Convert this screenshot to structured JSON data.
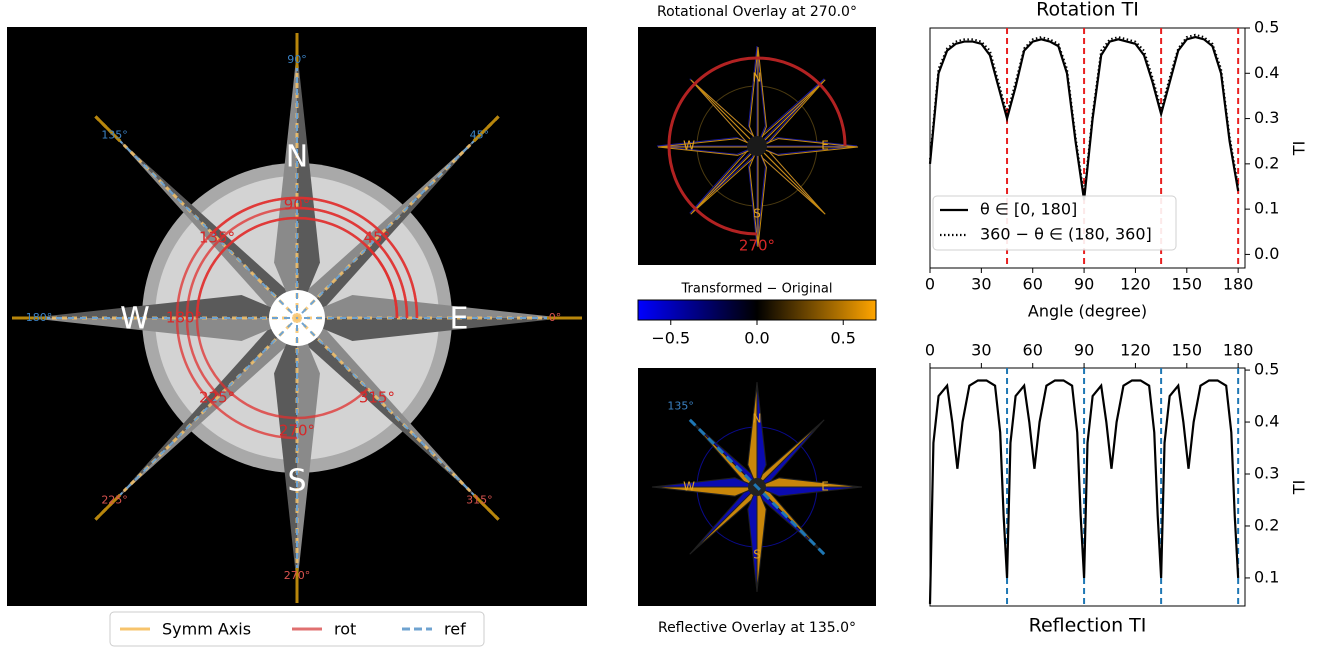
{
  "chart_data": [
    {
      "type": "compass",
      "cardinals": [
        "N",
        "E",
        "S",
        "W"
      ],
      "axis_labels": [
        {
          "value": 0,
          "label": "0°"
        },
        {
          "value": 45,
          "label": "45°"
        },
        {
          "value": 90,
          "label": "90°"
        },
        {
          "value": 135,
          "label": "135°"
        },
        {
          "value": 180,
          "label": "180°"
        },
        {
          "value": 225,
          "label": "225°"
        },
        {
          "value": 270,
          "label": "270°"
        },
        {
          "value": 315,
          "label": "315°"
        }
      ],
      "rotation_labels": [
        {
          "value": 45,
          "label": "45°"
        },
        {
          "value": 90,
          "label": "90°"
        },
        {
          "value": 135,
          "label": "135°"
        },
        {
          "value": 180,
          "label": "180°"
        },
        {
          "value": 225,
          "label": "225°"
        },
        {
          "value": 270,
          "label": "270°"
        },
        {
          "value": 315,
          "label": "315°"
        }
      ],
      "legend": [
        {
          "name": "Symm Axis",
          "color": "#f7c46c"
        },
        {
          "name": "rot",
          "color": "#e07070"
        },
        {
          "name": "ref",
          "color": "#6fa3d0",
          "dashed": true
        }
      ]
    },
    {
      "type": "overlay",
      "title": "Rotational Overlay at 270.0°",
      "cardinals": [
        "N",
        "E",
        "S",
        "W"
      ],
      "rotation": {
        "value": 270,
        "label": "270°"
      }
    },
    {
      "type": "colorbar",
      "label": "Transformed − Original",
      "colors": [
        "#0000ff",
        "#000000",
        "#ffa500"
      ],
      "xlim": [
        -0.69,
        0.69
      ],
      "xticks": [
        {
          "value": -0.5,
          "label": "−0.5"
        },
        {
          "value": 0,
          "label": "0.0"
        },
        0.5
      ]
    },
    {
      "type": "overlay",
      "title": "Reflective Overlay at 135.0°",
      "cardinals": [
        "N",
        "E",
        "S",
        "W"
      ],
      "reflection": {
        "value": 135,
        "label": "135°"
      }
    },
    {
      "type": "line",
      "title": "Rotation TI",
      "xlabel": "Angle (degree)",
      "ylabel": "TI",
      "xlim": [
        0,
        184
      ],
      "ylim": [
        -0.03,
        0.5
      ],
      "xticks": [
        0,
        30,
        60,
        90,
        120,
        150,
        180
      ],
      "yticks": [
        {
          "value": 0,
          "label": "0.0"
        },
        0.1,
        0.2,
        0.3,
        0.4,
        0.5
      ],
      "legend": "lower left",
      "x": [
        0,
        5,
        10,
        15,
        20,
        25,
        30,
        35,
        40,
        45,
        50,
        55,
        60,
        65,
        70,
        75,
        80,
        85,
        90,
        95,
        100,
        105,
        110,
        115,
        120,
        125,
        130,
        135,
        140,
        145,
        150,
        155,
        160,
        165,
        170,
        175,
        180
      ],
      "series": [
        {
          "name": "θ ∈ [0, 180]",
          "color": "#000000",
          "style": "solid",
          "values": [
            0.2,
            0.4,
            0.45,
            0.465,
            0.47,
            0.47,
            0.465,
            0.44,
            0.37,
            0.3,
            0.37,
            0.45,
            0.47,
            0.475,
            0.47,
            0.46,
            0.4,
            0.25,
            0.12,
            0.3,
            0.44,
            0.47,
            0.475,
            0.47,
            0.465,
            0.44,
            0.38,
            0.31,
            0.38,
            0.45,
            0.475,
            0.48,
            0.475,
            0.46,
            0.4,
            0.25,
            0.14
          ]
        },
        {
          "name": "360 − θ ∈ (180, 360]",
          "color": "#000000",
          "style": "dotted",
          "values": [
            0.21,
            0.41,
            0.455,
            0.47,
            0.475,
            0.475,
            0.47,
            0.45,
            0.38,
            0.31,
            0.38,
            0.455,
            0.475,
            0.48,
            0.475,
            0.465,
            0.41,
            0.26,
            0.13,
            0.31,
            0.45,
            0.475,
            0.48,
            0.475,
            0.47,
            0.45,
            0.39,
            0.32,
            0.39,
            0.455,
            0.48,
            0.485,
            0.48,
            0.465,
            0.41,
            0.26,
            0.15
          ]
        }
      ],
      "vlines": {
        "x": [
          45,
          90,
          135,
          180
        ],
        "color": "#e82020"
      }
    },
    {
      "type": "line",
      "title": "Reflection TI",
      "title_position": "bottom",
      "xaxis_position": "top",
      "ylabel": "TI",
      "xlim": [
        0,
        184
      ],
      "ylim": [
        0.046,
        0.504
      ],
      "xticks": [
        0,
        30,
        60,
        90,
        120,
        150,
        180
      ],
      "yticks": [
        0.1,
        0.2,
        0.3,
        0.4,
        0.5
      ],
      "x": [
        0,
        2,
        5,
        10,
        13,
        16,
        19,
        23,
        28,
        33,
        38,
        41,
        43,
        45,
        47,
        50,
        55,
        58,
        61,
        64,
        68,
        73,
        78,
        83,
        86,
        88,
        90,
        92,
        95,
        100,
        103,
        106,
        109,
        113,
        118,
        123,
        128,
        131,
        133,
        135,
        137,
        140,
        145,
        148,
        151,
        154,
        158,
        163,
        168,
        173,
        176,
        178,
        180
      ],
      "series": [
        {
          "name": "TI",
          "color": "#000000",
          "style": "solid",
          "values": [
            0.05,
            0.36,
            0.45,
            0.47,
            0.4,
            0.31,
            0.4,
            0.47,
            0.48,
            0.48,
            0.47,
            0.38,
            0.22,
            0.1,
            0.36,
            0.45,
            0.47,
            0.4,
            0.31,
            0.4,
            0.47,
            0.48,
            0.48,
            0.47,
            0.38,
            0.22,
            0.1,
            0.36,
            0.45,
            0.47,
            0.4,
            0.31,
            0.4,
            0.47,
            0.48,
            0.48,
            0.47,
            0.38,
            0.22,
            0.1,
            0.36,
            0.45,
            0.47,
            0.4,
            0.31,
            0.4,
            0.47,
            0.48,
            0.48,
            0.47,
            0.38,
            0.22,
            0.1
          ]
        }
      ],
      "vlines": {
        "x": [
          45,
          90,
          135,
          180
        ],
        "color": "#1f77b4"
      }
    }
  ]
}
